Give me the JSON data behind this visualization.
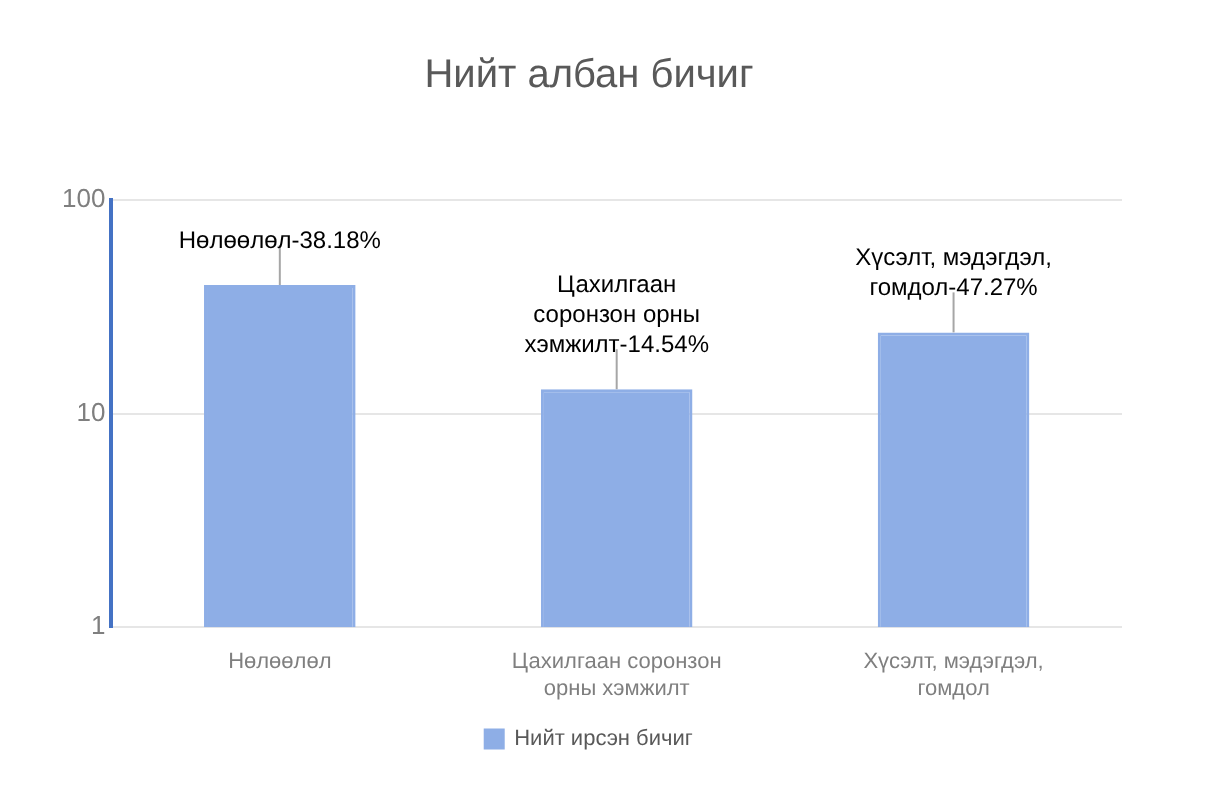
{
  "chart_data": {
    "type": "bar",
    "title": "Нийт албан бичиг",
    "categories": [
      "Нөлөөлөл",
      "Цахилгаан соронзон орны хэмжилт",
      "Хүсэлт, мэдэгдэл, гомдол"
    ],
    "series": [
      {
        "name": "Нийт ирсэн бичиг",
        "color": "#8eaee6",
        "values": [
          40,
          13,
          24
        ],
        "value_labels": [
          "Нөлөөлөл-38.18%",
          "Цахилгаан соронзон орны хэмжилт-14.54%",
          "Хүсэлт, мэдэгдэл, гомдол-47.27%"
        ]
      }
    ],
    "log": true,
    "ylim": [
      1,
      100
    ],
    "yticks": [
      1,
      10,
      100
    ],
    "grid": "y",
    "legend": "bottom"
  }
}
